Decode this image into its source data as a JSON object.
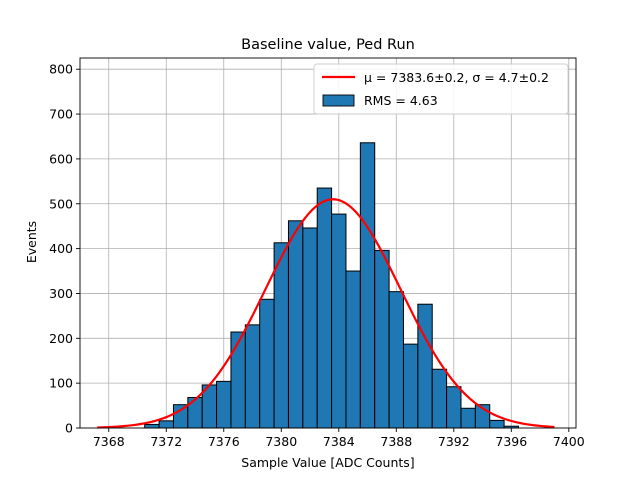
{
  "chart_data": {
    "type": "bar",
    "title": "Baseline value, Ped Run",
    "xlabel": "Sample Value [ADC Counts]",
    "ylabel": "Events",
    "xlim": [
      7366,
      7400.5
    ],
    "ylim": [
      0,
      825
    ],
    "grid": true,
    "legend_position": "top-right",
    "bin_width": 1,
    "x_ticks": [
      "7368",
      "7372",
      "7376",
      "7380",
      "7384",
      "7388",
      "7392",
      "7396",
      "7400"
    ],
    "x_tick_values": [
      7368,
      7372,
      7376,
      7380,
      7384,
      7388,
      7392,
      7396,
      7400
    ],
    "y_ticks": [
      "0",
      "100",
      "200",
      "300",
      "400",
      "500",
      "600",
      "700",
      "800"
    ],
    "y_tick_values": [
      0,
      100,
      200,
      300,
      400,
      500,
      600,
      700,
      800
    ],
    "bins": [
      {
        "x": 7371,
        "count": 8
      },
      {
        "x": 7372,
        "count": 16
      },
      {
        "x": 7373,
        "count": 52
      },
      {
        "x": 7374,
        "count": 68
      },
      {
        "x": 7375,
        "count": 96
      },
      {
        "x": 7376,
        "count": 104
      },
      {
        "x": 7377,
        "count": 214
      },
      {
        "x": 7378,
        "count": 230
      },
      {
        "x": 7379,
        "count": 287
      },
      {
        "x": 7380,
        "count": 413
      },
      {
        "x": 7381,
        "count": 462
      },
      {
        "x": 7382,
        "count": 446
      },
      {
        "x": 7383,
        "count": 535
      },
      {
        "x": 7384,
        "count": 477
      },
      {
        "x": 7385,
        "count": 350
      },
      {
        "x": 7386,
        "count": 636
      },
      {
        "x": 7387,
        "count": 396
      },
      {
        "x": 7388,
        "count": 304
      },
      {
        "x": 7389,
        "count": 187
      },
      {
        "x": 7390,
        "count": 276
      },
      {
        "x": 7391,
        "count": 131
      },
      {
        "x": 7392,
        "count": 92
      },
      {
        "x": 7393,
        "count": 44
      },
      {
        "x": 7394,
        "count": 52
      },
      {
        "x": 7395,
        "count": 17
      },
      {
        "x": 7396,
        "count": 4
      }
    ],
    "fit": {
      "mu": 7383.6,
      "sigma": 4.7,
      "amplitude": 510,
      "x_range": [
        7367.2,
        7399
      ]
    },
    "series": [
      {
        "name": "μ = 7383.6±0.2, σ = 4.7±0.2",
        "type": "line"
      },
      {
        "name": "RMS = 4.63",
        "type": "bar"
      }
    ],
    "colors": {
      "bar_fill": "#1f77b4",
      "bar_edge": "#000000",
      "fit_line": "#ff0000",
      "grid": "#b0b0b0"
    }
  }
}
